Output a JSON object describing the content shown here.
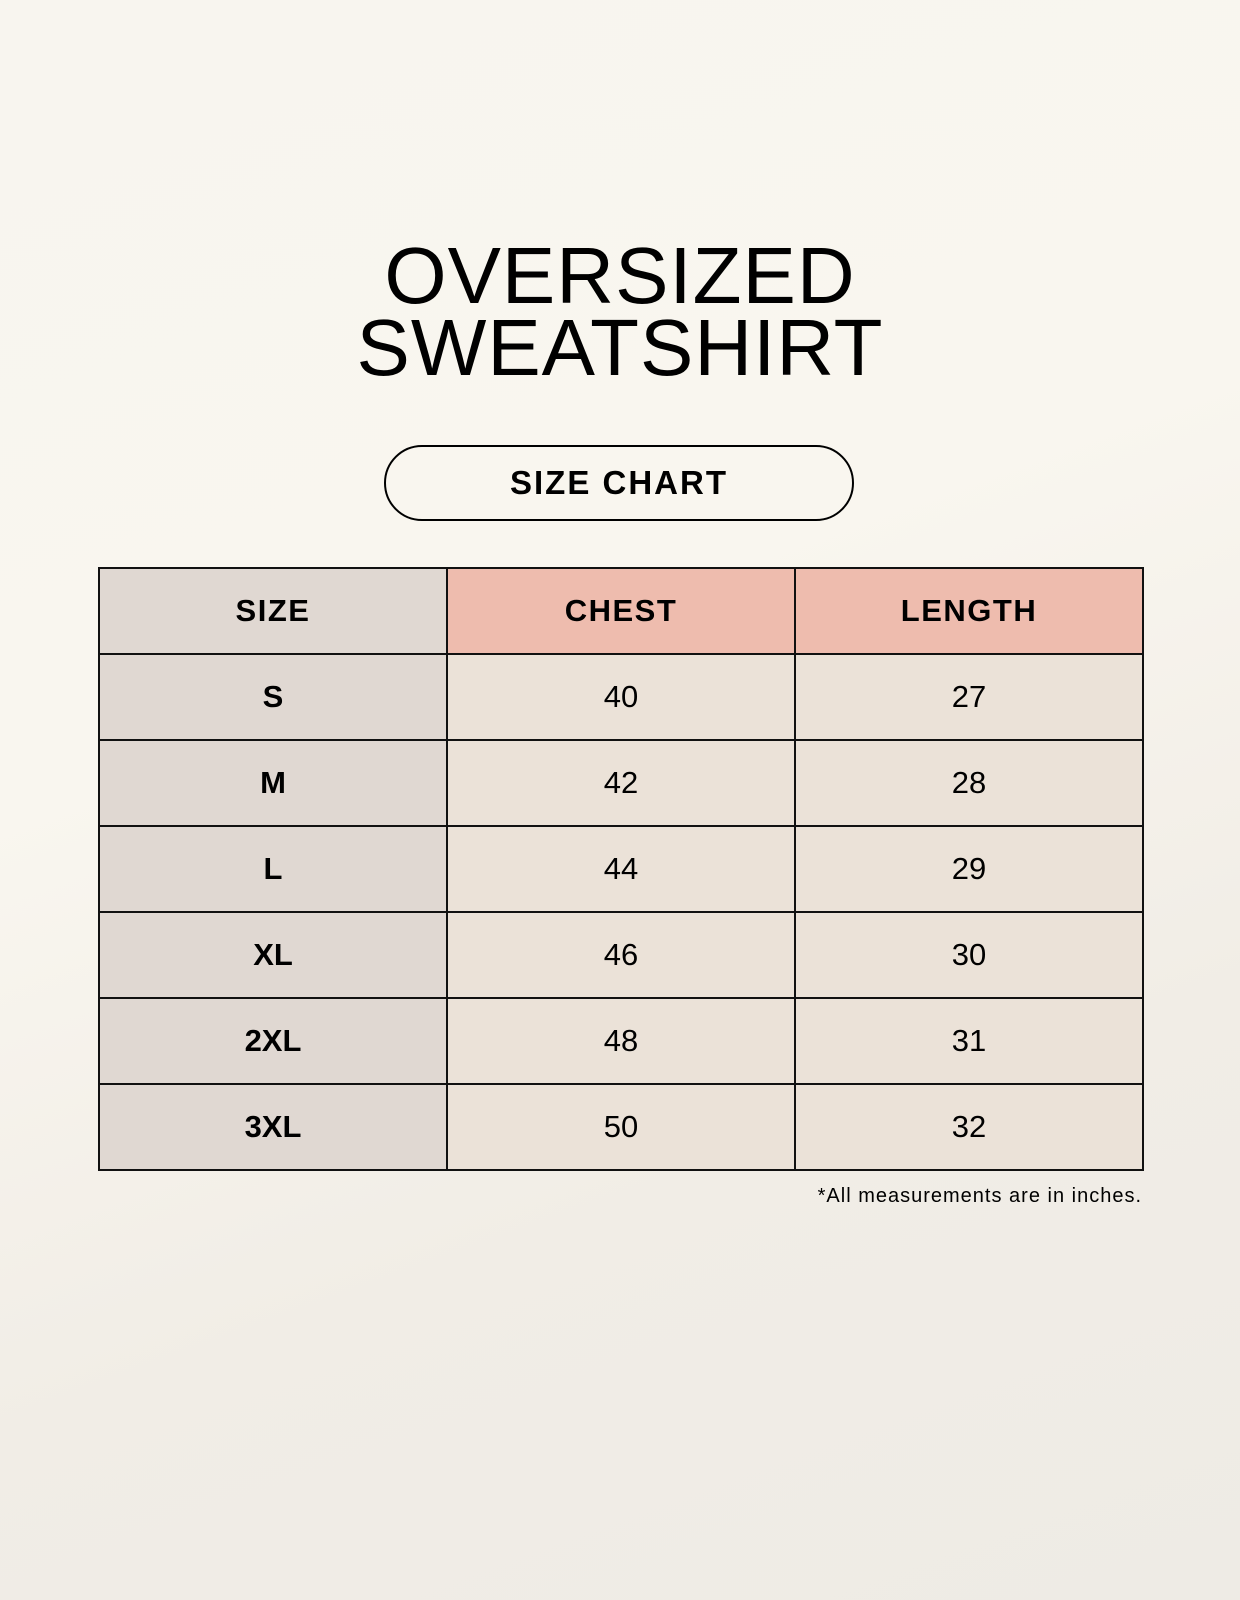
{
  "title_lines": [
    "OVERSIZED",
    "SWEATSHIRT"
  ],
  "subtitle": "SIZE CHART",
  "table": {
    "headers": [
      "SIZE",
      "CHEST",
      "LENGTH"
    ],
    "rows": [
      [
        "S",
        "40",
        "27"
      ],
      [
        "M",
        "42",
        "28"
      ],
      [
        "L",
        "44",
        "29"
      ],
      [
        "XL",
        "46",
        "30"
      ],
      [
        "2XL",
        "48",
        "31"
      ],
      [
        "3XL",
        "50",
        "32"
      ]
    ]
  },
  "note": "*All measurements are in inches.",
  "colors": {
    "size_column": "#e0d8d2",
    "header_accent": "#eebcae",
    "cell": "#ebe2d8"
  }
}
